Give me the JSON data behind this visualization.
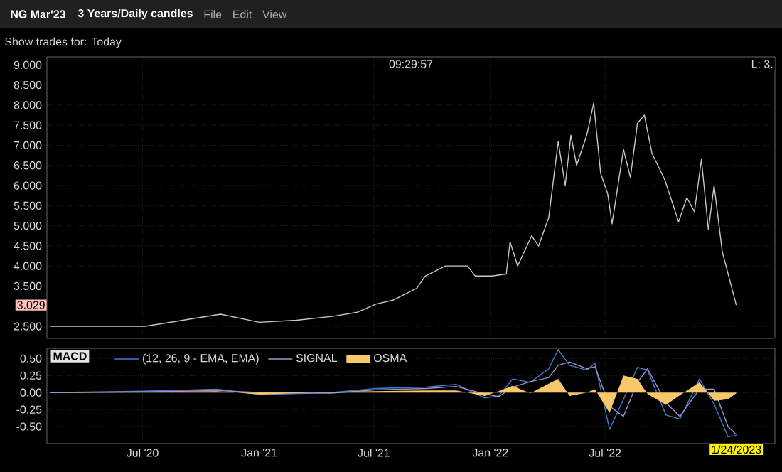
{
  "chart_data": [
    {
      "type": "other",
      "title": "NG Mar'23",
      "subtitle": "3 Years/Daily candles",
      "annotations": [
        "File",
        "Edit",
        "View",
        "Show trades for: Today"
      ]
    },
    {
      "type": "line",
      "annotations": [
        "09:29:57",
        "L: 3.",
        "3.029"
      ],
      "x": [
        "2020-02-07",
        "2020-07-05",
        "2020-11-01",
        "2021-01-01",
        "2021-03-01",
        "2021-04-28",
        "2021-06-05",
        "2021-07-04",
        "2021-07-31",
        "2021-09-07",
        "2021-09-20",
        "2021-10-22",
        "2021-11-26",
        "2021-12-08",
        "2022-01-03",
        "2022-01-26",
        "2022-02-01",
        "2022-02-13",
        "2022-03-07",
        "2022-03-18",
        "2022-04-03",
        "2022-04-18",
        "2022-04-29",
        "2022-05-08",
        "2022-05-17",
        "2022-06-02",
        "2022-06-13",
        "2022-06-24",
        "2022-07-05",
        "2022-07-12",
        "2022-07-30",
        "2022-08-10",
        "2022-08-21",
        "2022-09-01",
        "2022-09-13",
        "2022-10-03",
        "2022-10-25",
        "2022-11-07",
        "2022-11-19",
        "2022-11-30",
        "2022-12-11",
        "2022-12-20",
        "2023-01-02",
        "2023-01-24"
      ],
      "series": [
        {
          "color": "#c8c8c8",
          "values": [
            2.5,
            2.5,
            2.8,
            2.6,
            2.65,
            2.75,
            2.85,
            3.05,
            3.15,
            3.45,
            3.75,
            4.0,
            4.0,
            3.75,
            3.75,
            3.8,
            4.6,
            4.0,
            4.75,
            4.5,
            5.2,
            7.1,
            6.0,
            7.25,
            6.5,
            7.25,
            8.05,
            6.3,
            5.8,
            5.05,
            6.9,
            6.2,
            7.55,
            7.75,
            6.8,
            6.15,
            5.1,
            5.7,
            5.35,
            6.65,
            4.9,
            6.0,
            4.35,
            3.029
          ]
        }
      ],
      "xlim": [
        "2020-02-01",
        "2023-03-26"
      ],
      "ylim": [
        2.2,
        9.2
      ],
      "xticks": [
        {
          "value": "2020-07-01",
          "label": null
        },
        {
          "value": "2021-01-01",
          "label": null
        },
        {
          "value": "2021-07-01",
          "label": null
        },
        {
          "value": "2022-01-01",
          "label": null
        },
        {
          "value": "2022-07-01",
          "label": null
        }
      ],
      "yticks": [
        {
          "value": 2.5,
          "label": "2.500"
        },
        {
          "value": 3.5,
          "label": "3.500"
        },
        {
          "value": 4,
          "label": "4.000"
        },
        {
          "value": 4.5,
          "label": "4.500"
        },
        {
          "value": 5,
          "label": "5.000"
        },
        {
          "value": 5.5,
          "label": "5.500"
        },
        {
          "value": 6,
          "label": "6.000"
        },
        {
          "value": 6.5,
          "label": "6.500"
        },
        {
          "value": 7,
          "label": "7.000"
        },
        {
          "value": 7.5,
          "label": "7.500"
        },
        {
          "value": 8,
          "label": "8.000"
        },
        {
          "value": 8.5,
          "label": "8.500"
        },
        {
          "value": 9,
          "label": "9.000"
        }
      ],
      "grid": true,
      "tick_labels": "y"
    },
    {
      "type": "line",
      "title": "MACD",
      "legend": "top left",
      "annotations": [
        "1/24/2023"
      ],
      "x": [
        "2020-02-07",
        "2020-07-01",
        "2020-10-26",
        "2021-01-04",
        "2021-04-24",
        "2021-07-04",
        "2021-09-22",
        "2021-11-08",
        "2021-12-23",
        "2022-01-14",
        "2022-02-05",
        "2022-03-05",
        "2022-04-03",
        "2022-04-18",
        "2022-05-06",
        "2022-06-02",
        "2022-06-15",
        "2022-07-08",
        "2022-07-30",
        "2022-08-21",
        "2022-09-06",
        "2022-10-05",
        "2022-10-27",
        "2022-11-27",
        "2022-12-20",
        "2023-01-11",
        "2023-01-24"
      ],
      "series": [
        {
          "name": "(12, 26, 9 - EMA, EMA)",
          "color": "#3d7fd0",
          "values": [
            0.0,
            0.02,
            0.05,
            -0.03,
            0.0,
            0.06,
            0.08,
            0.12,
            -0.08,
            -0.05,
            0.2,
            0.15,
            0.35,
            0.63,
            0.4,
            0.33,
            0.43,
            -0.54,
            -0.1,
            0.37,
            0.33,
            -0.33,
            -0.39,
            0.2,
            -0.17,
            -0.65,
            -0.63
          ]
        },
        {
          "name": "SIGNAL",
          "color": "#a98fd0",
          "values": [
            0.0,
            0.01,
            0.03,
            0.0,
            -0.01,
            0.04,
            0.06,
            0.09,
            -0.02,
            -0.06,
            0.08,
            0.16,
            0.22,
            0.4,
            0.45,
            0.35,
            0.38,
            -0.2,
            -0.35,
            0.15,
            0.35,
            -0.15,
            -0.35,
            0.05,
            0.05,
            -0.5,
            -0.62
          ]
        },
        {
          "name": "OSMA",
          "type": "area",
          "color": "#f7c86a",
          "values": [
            0.0,
            0.01,
            0.02,
            -0.03,
            0.01,
            0.02,
            0.03,
            0.03,
            -0.05,
            0.02,
            0.1,
            -0.01,
            0.13,
            0.2,
            -0.05,
            0.0,
            0.05,
            -0.3,
            0.25,
            0.2,
            -0.02,
            -0.18,
            -0.04,
            0.15,
            -0.12,
            -0.1,
            -0.01
          ]
        }
      ],
      "xlim": [
        "2020-02-01",
        "2023-03-26"
      ],
      "ylim": [
        -0.75,
        0.65
      ],
      "xticks": [
        {
          "value": "2020-07-01",
          "label": "Jul '20"
        },
        {
          "value": "2021-01-01",
          "label": "Jan '21"
        },
        {
          "value": "2021-07-01",
          "label": "Jul '21"
        },
        {
          "value": "2022-01-01",
          "label": "Jan '22"
        },
        {
          "value": "2022-07-01",
          "label": "Jul '22"
        }
      ],
      "yticks": [
        {
          "value": -0.5,
          "label": "-0.50"
        },
        {
          "value": -0.25,
          "label": "-0.25"
        },
        {
          "value": 0,
          "label": "0.00"
        },
        {
          "value": 0.25,
          "label": "0.25"
        },
        {
          "value": 0.5,
          "label": "0.50"
        }
      ],
      "grid": true
    }
  ]
}
